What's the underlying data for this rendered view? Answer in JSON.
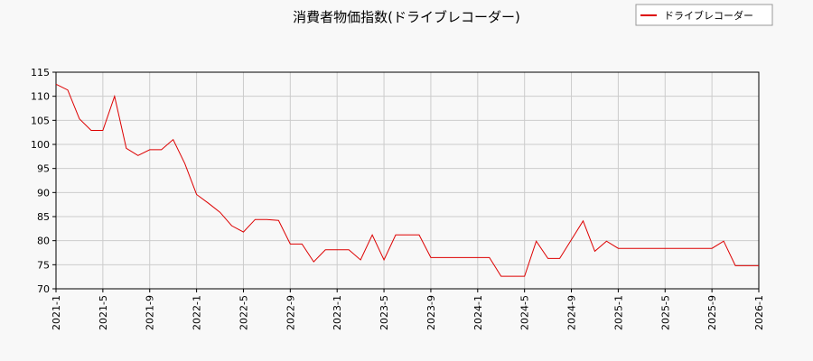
{
  "chart_data": {
    "type": "line",
    "title": "消費者物価指数(ドライブレコーダー)",
    "xlabel": "",
    "ylabel": "",
    "grid": true,
    "legend_position": "top-right",
    "ylim": [
      70,
      115
    ],
    "yticks": [
      70,
      75,
      80,
      85,
      90,
      95,
      100,
      105,
      110,
      115
    ],
    "xlim": [
      "2021-1",
      "2026-1"
    ],
    "xticks": [
      "2021-1",
      "2021-5",
      "2021-9",
      "2022-1",
      "2022-5",
      "2022-9",
      "2023-1",
      "2023-5",
      "2023-9",
      "2024-1",
      "2024-5",
      "2024-9",
      "2025-1",
      "2025-5",
      "2025-9",
      "2026-1"
    ],
    "series": [
      {
        "name": "ドライブレコーダー",
        "color": "#dd0000",
        "points": [
          [
            "2021-1",
            112.5
          ],
          [
            "2021-2",
            111.3
          ],
          [
            "2021-3",
            105.3
          ],
          [
            "2021-4",
            102.9
          ],
          [
            "2021-5",
            102.9
          ],
          [
            "2021-6",
            110.0
          ],
          [
            "2021-7",
            99.2
          ],
          [
            "2021-8",
            97.7
          ],
          [
            "2021-9",
            98.9
          ],
          [
            "2021-10",
            98.9
          ],
          [
            "2021-11",
            101.0
          ],
          [
            "2021-12",
            96.0
          ],
          [
            "2022-1",
            89.6
          ],
          [
            "2022-2",
            87.8
          ],
          [
            "2022-3",
            85.9
          ],
          [
            "2022-4",
            83.1
          ],
          [
            "2022-5",
            81.8
          ],
          [
            "2022-6",
            84.4
          ],
          [
            "2022-7",
            84.4
          ],
          [
            "2022-8",
            84.2
          ],
          [
            "2022-9",
            79.3
          ],
          [
            "2022-10",
            79.3
          ],
          [
            "2022-11",
            75.6
          ],
          [
            "2022-12",
            78.1
          ],
          [
            "2023-1",
            78.1
          ],
          [
            "2023-2",
            78.1
          ],
          [
            "2023-3",
            76.0
          ],
          [
            "2023-4",
            81.2
          ],
          [
            "2023-5",
            76.0
          ],
          [
            "2023-6",
            81.2
          ],
          [
            "2023-7",
            81.2
          ],
          [
            "2023-8",
            81.2
          ],
          [
            "2023-9",
            76.5
          ],
          [
            "2023-10",
            76.5
          ],
          [
            "2023-11",
            76.5
          ],
          [
            "2023-12",
            76.5
          ],
          [
            "2024-1",
            76.5
          ],
          [
            "2024-2",
            76.5
          ],
          [
            "2024-3",
            72.6
          ],
          [
            "2024-4",
            72.6
          ],
          [
            "2024-5",
            72.6
          ],
          [
            "2024-6",
            79.9
          ],
          [
            "2024-7",
            76.3
          ],
          [
            "2024-8",
            76.3
          ],
          [
            "2024-9",
            80.2
          ],
          [
            "2024-10",
            84.1
          ],
          [
            "2024-11",
            77.8
          ],
          [
            "2024-12",
            79.9
          ],
          [
            "2025-1",
            78.4
          ],
          [
            "2025-2",
            78.4
          ],
          [
            "2025-3",
            78.4
          ],
          [
            "2025-4",
            78.4
          ],
          [
            "2025-5",
            78.4
          ],
          [
            "2025-6",
            78.4
          ],
          [
            "2025-7",
            78.4
          ],
          [
            "2025-8",
            78.4
          ],
          [
            "2025-9",
            78.4
          ],
          [
            "2025-10",
            79.9
          ],
          [
            "2025-11",
            74.8
          ],
          [
            "2025-12",
            74.8
          ],
          [
            "2026-1",
            74.8
          ]
        ]
      }
    ]
  }
}
